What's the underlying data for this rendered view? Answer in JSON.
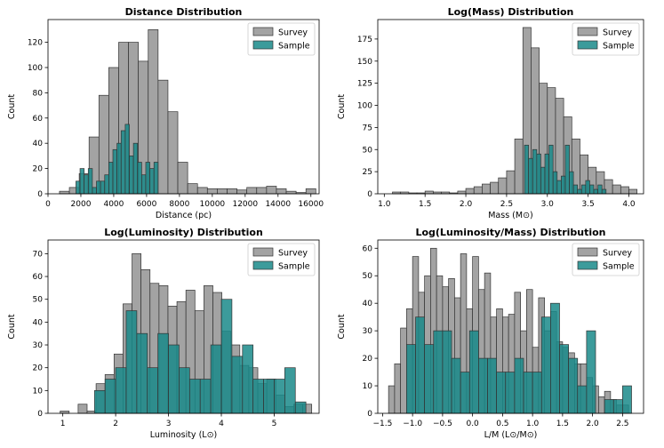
{
  "colors": {
    "survey": "#999999",
    "sample": "#1a8a8a",
    "edge": "#333333"
  },
  "chart_data": [
    {
      "type": "bar",
      "title": "Distance Distribution",
      "xlabel": "Distance (pc)",
      "ylabel": "Count",
      "xlim": [
        0,
        16500
      ],
      "ylim": [
        0,
        138
      ],
      "xticks": [
        0,
        2000,
        4000,
        6000,
        8000,
        10000,
        12000,
        14000,
        16000
      ],
      "yticks": [
        0,
        20,
        40,
        60,
        80,
        100,
        120
      ],
      "legend": "top-right",
      "series": [
        {
          "name": "Survey",
          "bin_edges": [
            700,
            1300,
            1900,
            2500,
            3100,
            3700,
            4300,
            4900,
            5500,
            6100,
            6700,
            7300,
            7900,
            8500,
            9100,
            9700,
            10300,
            10900,
            11500,
            12100,
            12700,
            13300,
            13900,
            14500,
            15100,
            15700,
            16300
          ],
          "counts": [
            2,
            5,
            16,
            45,
            78,
            100,
            120,
            120,
            105,
            130,
            90,
            65,
            25,
            8,
            5,
            4,
            4,
            4,
            3,
            5,
            5,
            6,
            4,
            2,
            1,
            4
          ]
        },
        {
          "name": "Sample",
          "bin_edges": [
            1700,
            1950,
            2200,
            2450,
            2700,
            2950,
            3200,
            3450,
            3700,
            3950,
            4200,
            4450,
            4700,
            4950,
            5200,
            5450,
            5700,
            5950,
            6200,
            6450,
            6700
          ],
          "counts": [
            10,
            20,
            15,
            20,
            5,
            10,
            10,
            15,
            25,
            35,
            40,
            50,
            55,
            30,
            40,
            25,
            15,
            25,
            20,
            25
          ]
        }
      ]
    },
    {
      "type": "bar",
      "title": "Log(Mass) Distribution",
      "xlabel": "Mass (M⊙)",
      "ylabel": "Count",
      "xlim": [
        0.92,
        4.18
      ],
      "ylim": [
        0,
        197
      ],
      "xticks": [
        1.0,
        1.5,
        2.0,
        2.5,
        3.0,
        3.5,
        4.0
      ],
      "xtick_labels": [
        "1.0",
        "1.5",
        "2.0",
        "2.5",
        "3.0",
        "3.5",
        "4.0"
      ],
      "yticks": [
        0,
        25,
        50,
        75,
        100,
        125,
        150,
        175
      ],
      "legend": "top-right",
      "series": [
        {
          "name": "Survey",
          "bin_edges": [
            1.1,
            1.2,
            1.3,
            1.4,
            1.5,
            1.6,
            1.7,
            1.8,
            1.9,
            2.0,
            2.1,
            2.2,
            2.3,
            2.4,
            2.5,
            2.6,
            2.7,
            2.8,
            2.9,
            3.0,
            3.1,
            3.2,
            3.3,
            3.4,
            3.5,
            3.6,
            3.7,
            3.8,
            3.9,
            4.0,
            4.1
          ],
          "counts": [
            2,
            2,
            1,
            1,
            3,
            2,
            2,
            1,
            3,
            6,
            8,
            11,
            13,
            18,
            26,
            62,
            188,
            165,
            125,
            120,
            108,
            87,
            62,
            44,
            30,
            25,
            16,
            10,
            8,
            5
          ]
        },
        {
          "name": "Sample",
          "bin_edges": [
            2.72,
            2.77,
            2.82,
            2.87,
            2.92,
            2.97,
            3.02,
            3.07,
            3.12,
            3.17,
            3.22,
            3.27,
            3.32,
            3.37,
            3.42,
            3.47,
            3.52,
            3.57,
            3.62,
            3.67,
            3.72
          ],
          "counts": [
            55,
            40,
            50,
            45,
            30,
            45,
            55,
            25,
            15,
            20,
            55,
            25,
            10,
            5,
            10,
            15,
            10,
            5,
            10,
            5
          ]
        }
      ]
    },
    {
      "type": "bar",
      "title": "Log(Luminosity) Distribution",
      "xlabel": "Luminosity (L⊙)",
      "ylabel": "Count",
      "xlim": [
        0.72,
        5.85
      ],
      "ylim": [
        0,
        76
      ],
      "xticks": [
        1,
        2,
        3,
        4,
        5
      ],
      "xtick_labels": [
        "1",
        "2",
        "3",
        "4",
        "5"
      ],
      "yticks": [
        0,
        10,
        20,
        30,
        40,
        50,
        60,
        70
      ],
      "legend": "top-right",
      "series": [
        {
          "name": "Survey",
          "bin_edges": [
            0.95,
            1.12,
            1.29,
            1.46,
            1.63,
            1.8,
            1.97,
            2.14,
            2.31,
            2.48,
            2.65,
            2.82,
            2.99,
            3.16,
            3.33,
            3.5,
            3.67,
            3.84,
            4.01,
            4.18,
            4.35,
            4.52,
            4.69,
            4.86,
            5.03,
            5.2,
            5.37,
            5.54,
            5.71
          ],
          "counts": [
            1,
            0,
            4,
            1,
            13,
            17,
            26,
            48,
            70,
            63,
            57,
            56,
            47,
            49,
            54,
            45,
            56,
            53,
            36,
            30,
            21,
            20,
            13,
            15,
            8,
            3,
            4,
            4
          ]
        },
        {
          "name": "Sample",
          "bin_edges": [
            1.6,
            1.8,
            2.0,
            2.2,
            2.4,
            2.6,
            2.8,
            3.0,
            3.2,
            3.4,
            3.6,
            3.8,
            4.0,
            4.2,
            4.4,
            4.6,
            4.8,
            5.0,
            5.2,
            5.4,
            5.6
          ],
          "counts": [
            10,
            15,
            20,
            45,
            35,
            20,
            35,
            30,
            20,
            15,
            15,
            30,
            50,
            25,
            30,
            15,
            15,
            15,
            20,
            5
          ]
        }
      ]
    },
    {
      "type": "bar",
      "title": "Log(Luminosity/Mass) Distribution",
      "xlabel": "L/M (L⊙/M⊙)",
      "ylabel": "Count",
      "xlim": [
        -1.58,
        2.85
      ],
      "ylim": [
        0,
        63
      ],
      "xticks": [
        -1.5,
        -1.0,
        -0.5,
        0.0,
        0.5,
        1.0,
        1.5,
        2.0,
        2.5
      ],
      "xtick_labels": [
        "−1.5",
        "−1.0",
        "−0.5",
        "0.0",
        "0.5",
        "1.0",
        "1.5",
        "2.0",
        "2.5"
      ],
      "yticks": [
        0,
        10,
        20,
        30,
        40,
        50,
        60
      ],
      "legend": "top-right",
      "series": [
        {
          "name": "Survey",
          "bin_edges": [
            -1.4,
            -1.3,
            -1.2,
            -1.1,
            -1.0,
            -0.9,
            -0.8,
            -0.7,
            -0.6,
            -0.5,
            -0.4,
            -0.3,
            -0.2,
            -0.1,
            0.0,
            0.1,
            0.2,
            0.3,
            0.4,
            0.5,
            0.6,
            0.7,
            0.8,
            0.9,
            1.0,
            1.1,
            1.2,
            1.3,
            1.4,
            1.5,
            1.6,
            1.7,
            1.8,
            1.9,
            2.0,
            2.1,
            2.2,
            2.3,
            2.4,
            2.5,
            2.6
          ],
          "counts": [
            10,
            18,
            31,
            38,
            57,
            44,
            50,
            60,
            50,
            46,
            49,
            42,
            58,
            38,
            57,
            45,
            51,
            35,
            38,
            35,
            36,
            44,
            30,
            45,
            24,
            42,
            30,
            37,
            26,
            24,
            22,
            18,
            18,
            13,
            10,
            6,
            8,
            5,
            3,
            3
          ]
        },
        {
          "name": "Sample",
          "bin_edges": [
            -1.1,
            -0.95,
            -0.8,
            -0.65,
            -0.5,
            -0.35,
            -0.2,
            -0.05,
            0.1,
            0.25,
            0.4,
            0.55,
            0.7,
            0.85,
            1.0,
            1.15,
            1.3,
            1.45,
            1.6,
            1.75,
            1.9,
            2.05,
            2.2,
            2.35,
            2.5,
            2.65
          ],
          "counts": [
            25,
            35,
            25,
            30,
            30,
            20,
            15,
            30,
            20,
            20,
            15,
            15,
            20,
            15,
            15,
            35,
            40,
            25,
            20,
            10,
            30,
            0,
            5,
            5,
            10
          ]
        }
      ]
    }
  ]
}
